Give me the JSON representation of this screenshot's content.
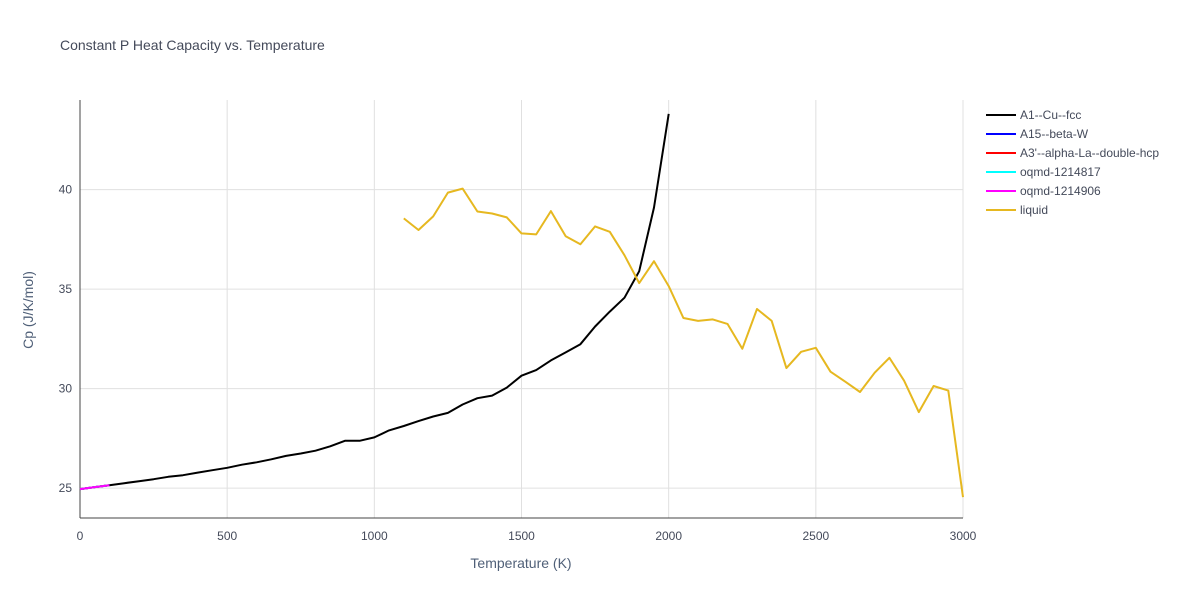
{
  "chart_data": {
    "type": "line",
    "title": "Constant P Heat Capacity vs. Temperature",
    "xlabel": "Temperature (K)",
    "ylabel": "Cp (J/K/mol)",
    "xlim": [
      0,
      3000
    ],
    "ylim": [
      23.5,
      44.5
    ],
    "xticks": [
      0,
      500,
      1000,
      1500,
      2000,
      2500,
      3000
    ],
    "yticks": [
      25,
      30,
      35,
      40
    ],
    "grid": true,
    "legend_position": "top-right",
    "series": [
      {
        "name": "A1--Cu--fcc",
        "color": "#000000",
        "x": [
          0,
          50,
          100,
          150,
          200,
          250,
          300,
          350,
          400,
          450,
          500,
          550,
          600,
          650,
          700,
          750,
          800,
          850,
          900,
          950,
          1000,
          1050,
          1100,
          1150,
          1200,
          1250,
          1300,
          1350,
          1400,
          1450,
          1500,
          1550,
          1600,
          1650,
          1700,
          1750,
          1800,
          1850,
          1900,
          1950,
          2000
        ],
        "y": [
          24.95,
          25.05,
          25.15,
          25.25,
          25.35,
          25.45,
          25.57,
          25.65,
          25.78,
          25.9,
          26.02,
          26.18,
          26.3,
          26.45,
          26.62,
          26.74,
          26.88,
          27.1,
          27.38,
          27.38,
          27.55,
          27.9,
          28.12,
          28.37,
          28.6,
          28.78,
          29.2,
          29.52,
          29.65,
          30.05,
          30.65,
          30.93,
          31.42,
          31.82,
          32.23,
          33.12,
          33.87,
          34.57,
          35.9,
          39.1,
          43.8
        ]
      },
      {
        "name": "A15--beta-W",
        "color": "#0000ff",
        "x": [
          0,
          50,
          100
        ],
        "y": [
          24.95,
          25.05,
          25.15
        ]
      },
      {
        "name": "A3'--alpha-La--double-hcp",
        "color": "#ff0000",
        "x": [
          0,
          50,
          100
        ],
        "y": [
          24.95,
          25.05,
          25.15
        ]
      },
      {
        "name": "oqmd-1214817",
        "color": "#00ffff",
        "x": [
          0,
          50,
          100
        ],
        "y": [
          24.95,
          25.05,
          25.15
        ]
      },
      {
        "name": "oqmd-1214906",
        "color": "#ff00ff",
        "x": [
          0,
          50,
          100
        ],
        "y": [
          24.95,
          25.05,
          25.15
        ]
      },
      {
        "name": "liquid",
        "color": "#e6b820",
        "x": [
          1100,
          1150,
          1200,
          1250,
          1300,
          1350,
          1400,
          1450,
          1500,
          1550,
          1600,
          1650,
          1700,
          1750,
          1800,
          1850,
          1900,
          1950,
          2000,
          2050,
          2100,
          2150,
          2200,
          2250,
          2300,
          2350,
          2400,
          2450,
          2500,
          2550,
          2600,
          2650,
          2700,
          2750,
          2800,
          2850,
          2900,
          2950,
          3000
        ],
        "y": [
          38.55,
          37.97,
          38.65,
          39.85,
          40.05,
          38.9,
          38.8,
          38.6,
          37.8,
          37.75,
          38.92,
          37.65,
          37.25,
          38.15,
          37.88,
          36.7,
          35.3,
          36.4,
          35.15,
          33.55,
          33.4,
          33.48,
          33.25,
          32.0,
          34.0,
          33.4,
          31.03,
          31.85,
          32.05,
          30.85,
          30.35,
          29.83,
          30.8,
          31.55,
          30.4,
          28.82,
          30.13,
          29.9,
          24.55
        ]
      }
    ]
  }
}
